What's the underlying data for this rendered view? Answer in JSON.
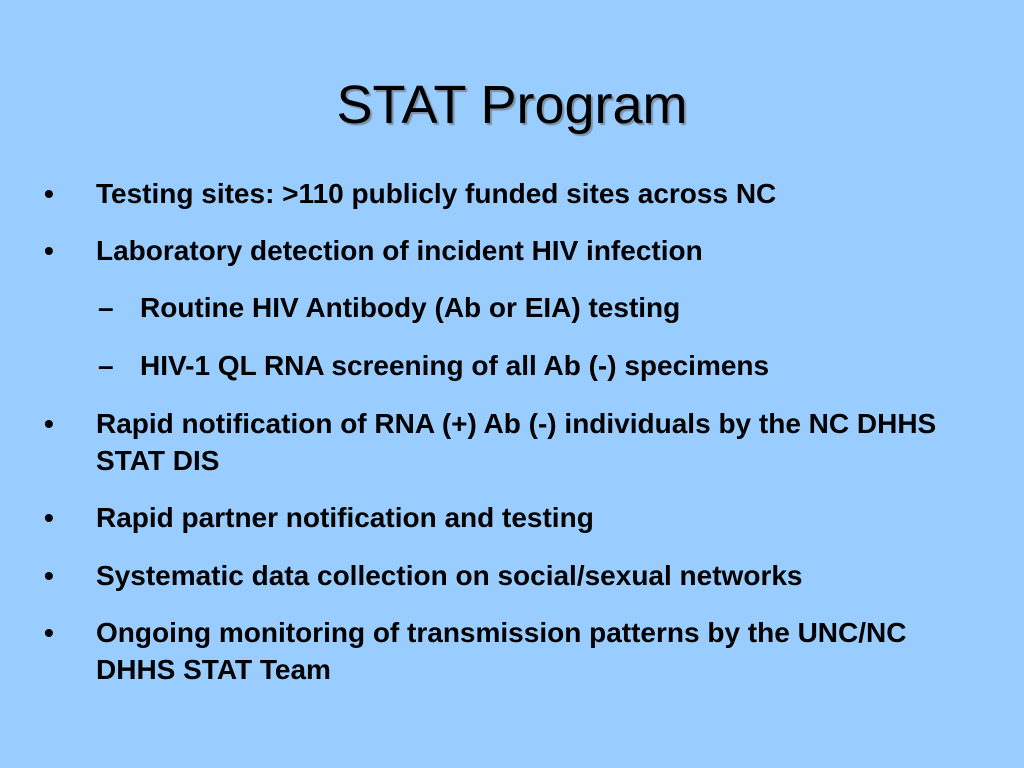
{
  "slide": {
    "title": "STAT Program",
    "bullet_icon": "bullet",
    "dash_icon": "en-dash",
    "items": [
      {
        "level": 1,
        "text": "Testing sites: >110 publicly funded sites across NC"
      },
      {
        "level": 1,
        "text": "Laboratory detection of incident HIV infection"
      },
      {
        "level": 2,
        "text": "Routine HIV Antibody (Ab or EIA) testing"
      },
      {
        "level": 2,
        "text": "HIV-1 QL RNA screening of all Ab (-) specimens"
      },
      {
        "level": 1,
        "text": "Rapid notification of RNA (+) Ab (-) individuals by the NC DHHS STAT DIS"
      },
      {
        "level": 1,
        "text": "Rapid partner notification and testing"
      },
      {
        "level": 1,
        "text": "Systematic data collection on social/sexual networks"
      },
      {
        "level": 1,
        "text": "Ongoing monitoring of transmission patterns by the UNC/NC DHHS STAT Team"
      }
    ],
    "background_color": "#99ccff"
  }
}
